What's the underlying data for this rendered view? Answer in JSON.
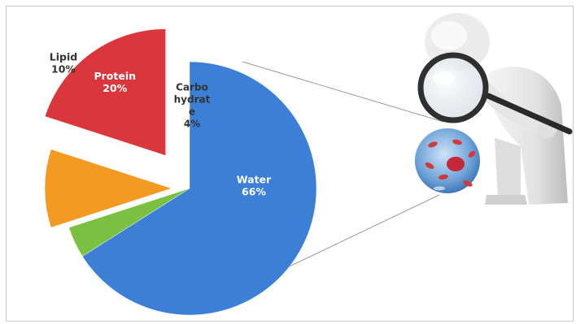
{
  "chart_data": {
    "type": "pie",
    "exploded": true,
    "categories": [
      "Water",
      "Carbo hydrate",
      "Lipid",
      "Protein"
    ],
    "values": [
      66,
      4,
      10,
      20
    ],
    "label_lines": [
      [
        "Water",
        "66%"
      ],
      [
        "Carbo",
        "hydrat",
        "e",
        "4%"
      ],
      [
        "Lipid",
        "10%"
      ],
      [
        "Protein",
        "20%"
      ]
    ],
    "colors": [
      "#3b7fd6",
      "#7cc043",
      "#f29a21",
      "#d9373c"
    ],
    "title": "",
    "legend": "none",
    "illustration": "person-with-magnifying-glass-over-cell"
  }
}
